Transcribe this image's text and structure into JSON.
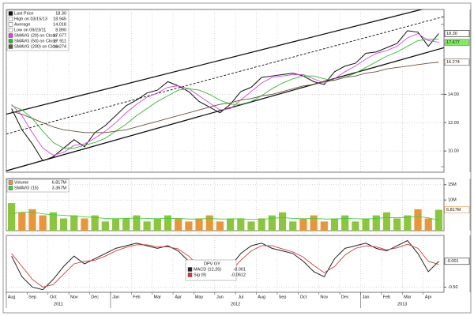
{
  "chart_data": [
    {
      "type": "line",
      "ylim": [
        8.5,
        20
      ],
      "yticks": [
        {
          "value": 10,
          "label": "10.00"
        },
        {
          "value": 12,
          "label": "12.00"
        },
        {
          "value": 14,
          "label": "14.00"
        }
      ],
      "grid": true,
      "stats": [
        {
          "name": "High on 03/15/13",
          "value": 18.945,
          "label": "18.945",
          "color": "#ffffff"
        },
        {
          "name": "Average",
          "value": 14.018,
          "label": "14.018",
          "color": "#ffffff"
        },
        {
          "name": "Low on 09/23/11",
          "value": 8.89,
          "label": "8.890",
          "color": "#ffffff"
        }
      ],
      "trend_lines": [
        {
          "values": [
            12.6,
            20.4
          ],
          "dash": false
        },
        {
          "values": [
            11.2,
            19.5
          ],
          "dash": true
        },
        {
          "values": [
            8.6,
            17.3
          ],
          "dash": false
        }
      ],
      "series": [
        {
          "name": "Last Price",
          "color": "#111111",
          "tag": true,
          "last_label": "18.30",
          "values": [
            13.0,
            11.5,
            10.5,
            9.3,
            9.6,
            10.2,
            10.8,
            10.3,
            11.3,
            11.8,
            12.5,
            13.2,
            13.6,
            14.1,
            14.3,
            14.9,
            14.6,
            14.2,
            13.5,
            13.1,
            12.7,
            13.3,
            14.2,
            14.5,
            15.2,
            15.3,
            15.4,
            15.5,
            15.3,
            14.9,
            14.7,
            15.6,
            16.0,
            16.2,
            16.9,
            17.0,
            17.3,
            17.6,
            18.5,
            18.4,
            17.4,
            18.3
          ]
        },
        {
          "name": "SMAVG (20) on Close",
          "color": "#d24ad2",
          "tag": true,
          "last_label": "17.677",
          "values": [
            13.3,
            12.5,
            11.3,
            10.2,
            9.7,
            9.9,
            10.4,
            10.5,
            10.9,
            11.4,
            12.0,
            12.7,
            13.3,
            13.8,
            14.1,
            14.5,
            14.6,
            14.4,
            13.9,
            13.4,
            12.9,
            13.0,
            13.6,
            14.2,
            14.8,
            15.2,
            15.3,
            15.4,
            15.4,
            15.1,
            14.8,
            15.1,
            15.6,
            16.0,
            16.5,
            16.9,
            17.1,
            17.4,
            18.0,
            18.3,
            17.8,
            17.677
          ]
        },
        {
          "name": "SMAVG (50) on Close",
          "color": "#2eb82e",
          "tag": false,
          "last_label": "17.911",
          "values": [
            13.2,
            12.9,
            12.3,
            11.4,
            10.6,
            10.2,
            10.2,
            10.4,
            10.6,
            10.9,
            11.4,
            11.9,
            12.5,
            13.0,
            13.5,
            13.9,
            14.3,
            14.4,
            14.3,
            14.0,
            13.6,
            13.3,
            13.3,
            13.5,
            13.9,
            14.4,
            14.8,
            15.1,
            15.3,
            15.3,
            15.1,
            15.0,
            15.2,
            15.5,
            15.9,
            16.3,
            16.7,
            17.0,
            17.4,
            17.8,
            17.9,
            17.911
          ]
        },
        {
          "name": "SMAVG (200) on Close",
          "color": "#6b5238",
          "tag": true,
          "last_label": "16.274",
          "values": [
            12.8,
            12.6,
            12.3,
            12.0,
            11.7,
            11.5,
            11.4,
            11.3,
            11.3,
            11.3,
            11.4,
            11.5,
            11.7,
            11.9,
            12.1,
            12.3,
            12.5,
            12.7,
            12.9,
            13.1,
            13.3,
            13.4,
            13.6,
            13.7,
            13.9,
            14.0,
            14.2,
            14.4,
            14.6,
            14.7,
            14.9,
            15.0,
            15.2,
            15.3,
            15.5,
            15.6,
            15.8,
            15.9,
            16.0,
            16.1,
            16.2,
            16.274
          ]
        }
      ]
    },
    {
      "type": "bar",
      "ylim": [
        0,
        17
      ],
      "yticks": [
        {
          "value": 10,
          "label": "10M"
        },
        {
          "value": 15,
          "label": "15M"
        }
      ],
      "grid": true,
      "up_color": "#8cc63f",
      "down_color": "#e8963a",
      "series": [
        {
          "name": "Volume",
          "color": "#e8963a",
          "tag": true,
          "last_label": "6.817M",
          "values": [
            9,
            6,
            7,
            5,
            6,
            4,
            5,
            4,
            5,
            3,
            4,
            4,
            5,
            3,
            4,
            5,
            4,
            3,
            4,
            5,
            3,
            4,
            4,
            3,
            4,
            5,
            6,
            3,
            4,
            5,
            3,
            4,
            5,
            3,
            4,
            5,
            6,
            4,
            5,
            7,
            4,
            6.817
          ]
        },
        {
          "name": "SMAVG (15)",
          "color": "#3ccf3c",
          "tag": false,
          "last_label": "3.367M",
          "values": [
            5.5,
            6,
            6,
            5.5,
            5.2,
            5,
            4.8,
            4.5,
            4.3,
            4,
            3.9,
            4,
            4.1,
            4,
            3.9,
            4,
            4,
            3.8,
            3.8,
            4,
            3.8,
            3.8,
            3.9,
            3.7,
            3.7,
            4,
            4.3,
            4,
            3.9,
            4,
            3.8,
            3.8,
            4,
            3.9,
            3.8,
            4,
            4.3,
            4.2,
            4.4,
            4.6,
            4.2,
            3.367
          ]
        }
      ]
    },
    {
      "type": "line",
      "title": "DPV GY",
      "ylim": [
        -0.6,
        0.5
      ],
      "yticks": [
        {
          "value": -0.5,
          "label": "-0.50"
        }
      ],
      "grid": true,
      "categories": [
        "Aug",
        null,
        "Sep",
        null,
        "Oct",
        null,
        "Nov",
        null,
        "Dec",
        null,
        "Jan",
        null,
        "Feb",
        null,
        "Mar",
        null,
        "Apr",
        null,
        "May",
        null,
        "Jun",
        null,
        "Jul",
        null,
        "Aug",
        null,
        "Sep",
        null,
        "Oct",
        null,
        "Nov",
        null,
        "Dec",
        null,
        "Jan",
        null,
        "Feb",
        null,
        "Mar",
        null,
        "Apr",
        null
      ],
      "x_groups": [
        {
          "label": "2011",
          "from": 0,
          "to": 10
        },
        {
          "label": "2012",
          "from": 10,
          "to": 34
        },
        {
          "label": "2013",
          "from": 34,
          "to": 42
        }
      ],
      "series": [
        {
          "name": "MACD (12,26)",
          "color": "#222222",
          "tag": true,
          "last_label": "-0.001",
          "values": [
            0.1,
            -0.3,
            -0.5,
            -0.55,
            -0.35,
            -0.1,
            0.1,
            -0.05,
            0.05,
            0.15,
            0.25,
            0.3,
            0.35,
            0.3,
            0.25,
            0.3,
            0.2,
            0.0,
            -0.25,
            -0.35,
            -0.3,
            -0.1,
            0.15,
            0.3,
            0.35,
            0.25,
            0.2,
            0.15,
            0.0,
            -0.2,
            -0.3,
            0.05,
            0.25,
            0.3,
            0.35,
            0.25,
            0.2,
            0.3,
            0.4,
            0.15,
            -0.2,
            -0.001
          ]
        },
        {
          "name": "Sig (9)",
          "color": "#d43a3a",
          "tag": false,
          "last_label": "-0.0612",
          "values": [
            0.15,
            -0.1,
            -0.35,
            -0.5,
            -0.45,
            -0.25,
            -0.05,
            0.0,
            0.02,
            0.1,
            0.2,
            0.27,
            0.32,
            0.32,
            0.28,
            0.28,
            0.24,
            0.1,
            -0.1,
            -0.28,
            -0.32,
            -0.2,
            0.02,
            0.2,
            0.3,
            0.3,
            0.24,
            0.18,
            0.08,
            -0.08,
            -0.22,
            -0.1,
            0.12,
            0.25,
            0.3,
            0.28,
            0.22,
            0.26,
            0.33,
            0.25,
            0.0,
            -0.0612
          ]
        }
      ]
    }
  ]
}
